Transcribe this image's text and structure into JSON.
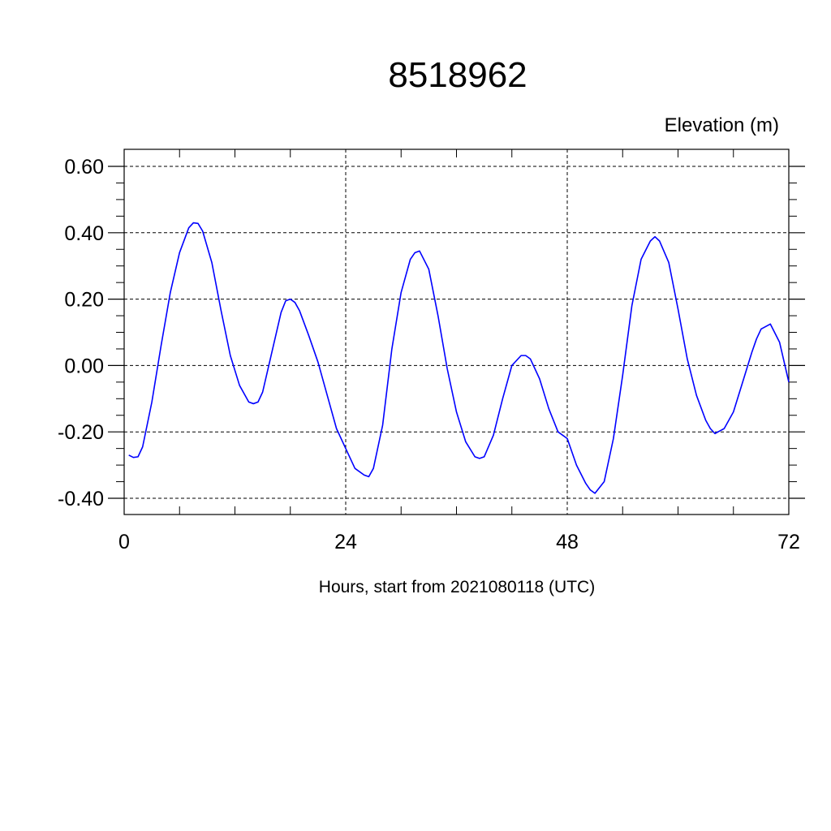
{
  "chart_data": {
    "type": "line",
    "title": "8518962",
    "ylabel": "Elevation (m)",
    "xlabel": "Hours, start from 2021080118 (UTC)",
    "xlim": [
      0,
      72
    ],
    "ylim": [
      -0.4,
      0.6
    ],
    "grid": true,
    "x_ticks": [
      0,
      24,
      48,
      72
    ],
    "x_tick_labels": [
      "0",
      "24",
      "48",
      "72"
    ],
    "y_ticks": [
      -0.4,
      -0.2,
      0.0,
      0.2,
      0.4,
      0.6
    ],
    "y_tick_labels": [
      "-0.40",
      "-0.20",
      "0.00",
      "0.20",
      "0.40",
      "0.60"
    ],
    "line_color": "#0000ff",
    "series": [
      {
        "x": [
          0.5,
          1,
          1.5,
          2,
          3,
          4,
          5,
          6,
          7,
          7.5,
          8,
          8.5,
          9.5,
          10.5,
          11.5,
          12.5,
          13.5,
          14,
          14.5,
          15,
          16,
          17,
          17.5,
          18,
          18.5,
          19,
          20,
          21,
          22,
          23,
          24,
          25,
          26,
          26.5,
          27,
          28,
          29,
          30,
          31,
          31.5,
          32,
          33,
          34,
          35,
          36,
          37,
          38,
          38.5,
          39,
          40,
          41,
          42,
          43,
          43.5,
          44,
          45,
          46,
          47,
          48,
          49,
          50,
          50.5,
          51,
          52,
          53,
          54,
          55,
          56,
          57,
          57.5,
          58,
          59,
          60,
          61,
          62,
          63,
          63.5,
          64,
          65,
          66,
          67,
          68,
          68.5,
          69,
          70,
          71,
          72
        ],
        "y": [
          -0.27,
          -0.277,
          -0.275,
          -0.245,
          -0.11,
          0.06,
          0.22,
          0.34,
          0.415,
          0.43,
          0.428,
          0.405,
          0.31,
          0.165,
          0.03,
          -0.06,
          -0.11,
          -0.115,
          -0.11,
          -0.08,
          0.04,
          0.16,
          0.195,
          0.2,
          0.19,
          0.165,
          0.09,
          0.01,
          -0.09,
          -0.19,
          -0.25,
          -0.31,
          -0.33,
          -0.335,
          -0.31,
          -0.18,
          0.05,
          0.22,
          0.32,
          0.34,
          0.345,
          0.29,
          0.15,
          -0.01,
          -0.14,
          -0.23,
          -0.275,
          -0.28,
          -0.275,
          -0.21,
          -0.1,
          0.0,
          0.03,
          0.03,
          0.02,
          -0.04,
          -0.13,
          -0.2,
          -0.22,
          -0.3,
          -0.355,
          -0.375,
          -0.385,
          -0.35,
          -0.22,
          -0.03,
          0.18,
          0.32,
          0.375,
          0.388,
          0.375,
          0.31,
          0.17,
          0.02,
          -0.09,
          -0.165,
          -0.19,
          -0.205,
          -0.19,
          -0.14,
          -0.05,
          0.04,
          0.08,
          0.11,
          0.125,
          0.07,
          -0.05
        ]
      }
    ]
  }
}
